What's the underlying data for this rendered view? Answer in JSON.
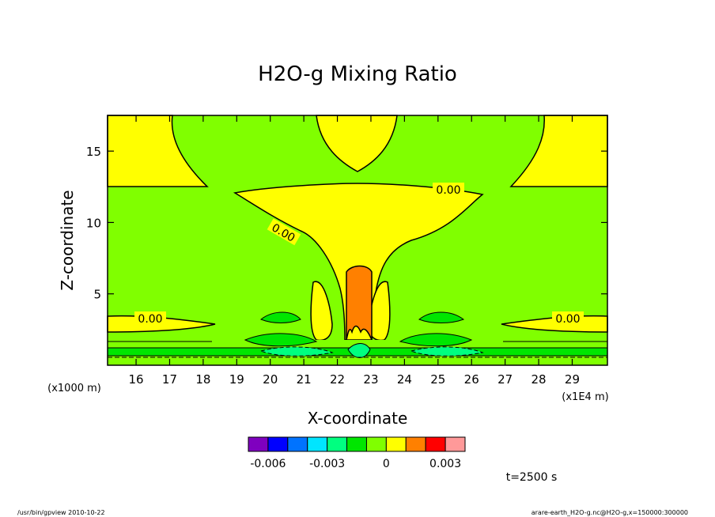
{
  "chart_data": {
    "type": "heatmap",
    "title": "H2O-g Mixing Ratio",
    "xlabel": "X-coordinate",
    "ylabel": "Z-coordinate",
    "x_unit": "(x1E4 m)",
    "y_unit": "(x1000 m)",
    "xlim": [
      15.15,
      30.05
    ],
    "ylim": [
      0,
      17.5
    ],
    "x_ticks": [
      16,
      17,
      18,
      19,
      20,
      21,
      22,
      23,
      24,
      25,
      26,
      27,
      28,
      29
    ],
    "y_ticks": [
      5,
      10,
      15
    ],
    "grid": false,
    "contour_labels": [
      {
        "text": "0.00",
        "x": 19.5,
        "y": 16.5
      },
      {
        "text": "0.00",
        "x": 18.5,
        "y": 16.3
      },
      {
        "text": "0.00",
        "x": 15.7,
        "y": 1.15
      },
      {
        "text": "0.00",
        "x": 29.15,
        "y": 1.15
      }
    ],
    "colorbar": {
      "colors": [
        "#7f00bf",
        "#0000ff",
        "#0073ff",
        "#00e5ff",
        "#00ff80",
        "#00e600",
        "#80ff00",
        "#ffff00",
        "#ff8000",
        "#ff0000",
        "#ff9999"
      ],
      "tick_labels": [
        "-0.006",
        "-0.003",
        "0",
        "0.003"
      ],
      "tick_positions": [
        -0.006,
        -0.003,
        0,
        0.003
      ],
      "range": [
        -0.007,
        0.004
      ]
    },
    "regions": {
      "background_value": 0,
      "yellow_positive": "0.00 to 0.001",
      "orange_core": "0.001 to 0.002"
    }
  },
  "time_label": "t=2500 s",
  "footer": {
    "left": "/usr/bin/gpview   2010-10-22",
    "right": "arare-earth_H2O-g.nc@H2O-g,x=150000:300000"
  },
  "colors": {
    "green": "#80ff00",
    "yellow": "#ffff00",
    "orange": "#ff8000",
    "light_green": "#00e600",
    "cyan_green": "#00ff80"
  }
}
